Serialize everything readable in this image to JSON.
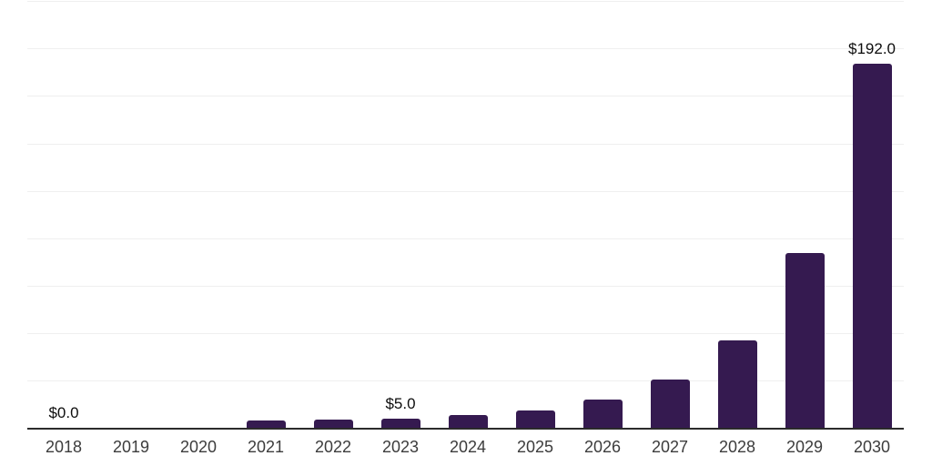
{
  "chart_data": {
    "type": "bar",
    "title": "",
    "xlabel": "",
    "ylabel": "",
    "categories": [
      "2018",
      "2019",
      "2020",
      "2021",
      "2022",
      "2023",
      "2024",
      "2025",
      "2026",
      "2027",
      "2028",
      "2029",
      "2030"
    ],
    "values": [
      0.0,
      0.0,
      0.0,
      3.7,
      4.5,
      5.0,
      6.5,
      9.0,
      15.0,
      25.5,
      46.0,
      92.0,
      192.0
    ],
    "data_labels": [
      "$0.0",
      null,
      null,
      null,
      null,
      "$5.0",
      null,
      null,
      null,
      null,
      null,
      null,
      "$192.0"
    ],
    "ylim": [
      0,
      225.6
    ],
    "gridline_step": 25,
    "grid": "horizontal-only",
    "legend": "none",
    "y_axis_ticks_visible": false,
    "colors": {
      "bar": "#351a50",
      "axis_line": "#2b2b2b",
      "gridline": "#efefef",
      "tick_label": "#3c3c3c",
      "data_label": "#0d0d0d",
      "background": "#ffffff"
    }
  }
}
